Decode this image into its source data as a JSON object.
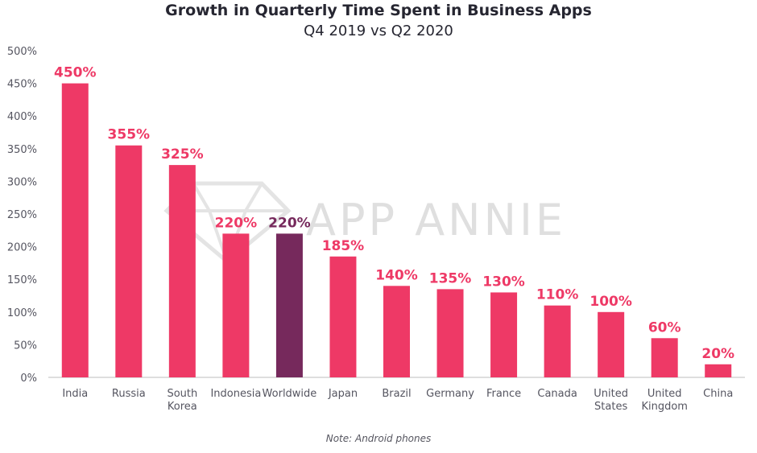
{
  "chart_data": {
    "type": "bar",
    "title": "Growth in Quarterly Time Spent in Business Apps",
    "subtitle": "Q4 2019 vs Q2 2020",
    "note": "Note: Android phones",
    "watermark": "APP ANNIE",
    "categories": [
      [
        "India"
      ],
      [
        "Russia"
      ],
      [
        "South",
        "Korea"
      ],
      [
        "Indonesia"
      ],
      [
        "Worldwide"
      ],
      [
        "Japan"
      ],
      [
        "Brazil"
      ],
      [
        "Germany"
      ],
      [
        "France"
      ],
      [
        "Canada"
      ],
      [
        "United",
        "States"
      ],
      [
        "United",
        "Kingdom"
      ],
      [
        "China"
      ]
    ],
    "values": [
      450,
      355,
      325,
      220,
      220,
      185,
      140,
      135,
      130,
      110,
      100,
      60,
      20
    ],
    "data_labels": [
      "450%",
      "355%",
      "325%",
      "220%",
      "220%",
      "185%",
      "140%",
      "135%",
      "130%",
      "110%",
      "100%",
      "60%",
      "20%"
    ],
    "highlight_index": 4,
    "ylim": [
      0,
      500
    ],
    "yticks": [
      0,
      50,
      100,
      150,
      200,
      250,
      300,
      350,
      400,
      450,
      500
    ],
    "ytick_labels": [
      "0%",
      "50%",
      "100%",
      "150%",
      "200%",
      "250%",
      "300%",
      "350%",
      "400%",
      "450%",
      "500%"
    ],
    "grid": false,
    "colors": {
      "bar": "#ee3966",
      "highlight_bar": "#76295c",
      "label": "#ee3966",
      "highlight_label": "#76295c",
      "axis": "#bdbdbd"
    }
  }
}
